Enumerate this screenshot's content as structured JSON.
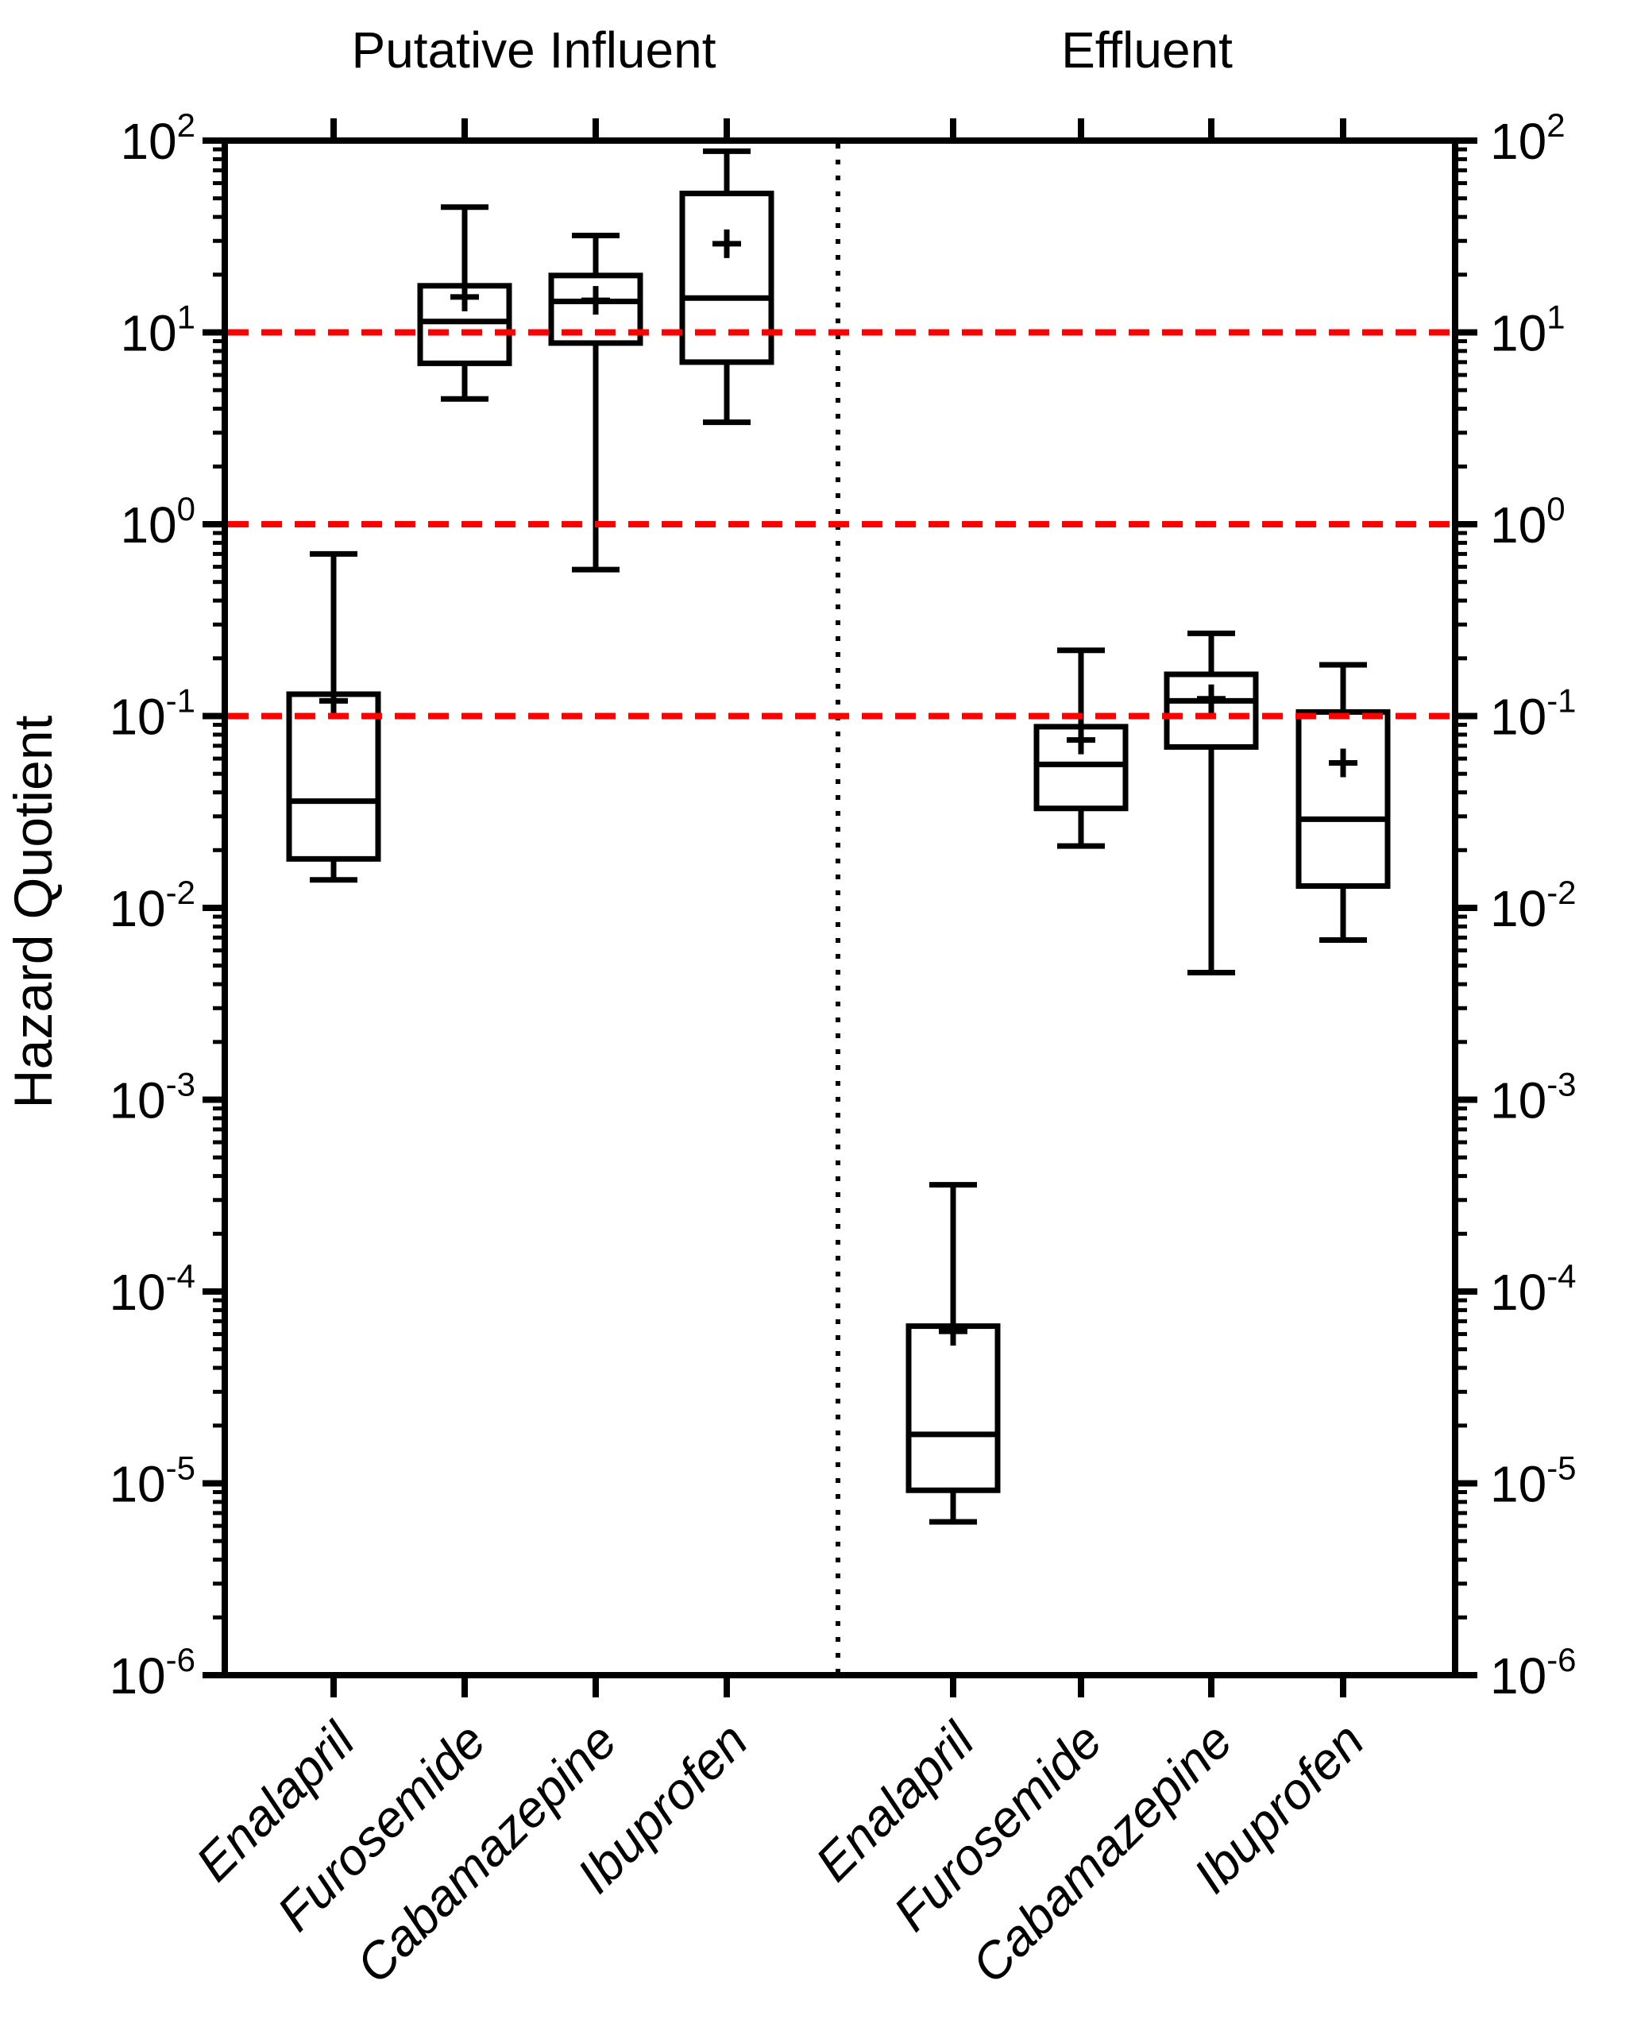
{
  "figure": {
    "ylabel": "Hazard Quotient",
    "group_titles": {
      "influent": "Putative Influent",
      "effluent": "Effluent"
    }
  },
  "chart_data": {
    "type": "boxplot",
    "y_scale": "log10",
    "ylabel": "Hazard Quotient",
    "ylim": [
      1e-06,
      100
    ],
    "ytick_exponents": [
      2,
      1,
      0,
      -1,
      -2,
      -3,
      -4,
      -5,
      -6
    ],
    "grid": "off",
    "reference_lines": {
      "values": [
        10,
        1,
        0.1
      ],
      "color": "#FF0000",
      "style": "dashed"
    },
    "group_separator": {
      "style": "dotted",
      "orientation": "vertical",
      "color": "#000000"
    },
    "groups": [
      {
        "label": "Putative Influent",
        "boxes": [
          {
            "category": "Enalapril",
            "whisker_low": 0.014,
            "q1": 0.018,
            "median": 0.036,
            "q3": 0.13,
            "mean": 0.12,
            "whisker_high": 0.7
          },
          {
            "category": "Furosemide",
            "whisker_low": 4.5,
            "q1": 6.9,
            "median": 11.4,
            "q3": 17.5,
            "mean": 15.3,
            "whisker_high": 45
          },
          {
            "category": "Cabamazepine",
            "whisker_low": 0.58,
            "q1": 8.8,
            "median": 14.5,
            "q3": 19.8,
            "mean": 14.7,
            "whisker_high": 32
          },
          {
            "category": "Ibuprofen",
            "whisker_low": 3.4,
            "q1": 7.0,
            "median": 15.1,
            "q3": 53,
            "mean": 29,
            "whisker_high": 88
          }
        ]
      },
      {
        "label": "Effluent",
        "boxes": [
          {
            "category": "Enalapril",
            "whisker_low": 6.3e-06,
            "q1": 9.2e-06,
            "median": 1.8e-05,
            "q3": 6.6e-05,
            "mean": 6.2e-05,
            "whisker_high": 0.00036
          },
          {
            "category": "Furosemide",
            "whisker_low": 0.021,
            "q1": 0.033,
            "median": 0.056,
            "q3": 0.088,
            "mean": 0.075,
            "whisker_high": 0.22
          },
          {
            "category": "Cabamazepine",
            "whisker_low": 0.0046,
            "q1": 0.069,
            "median": 0.12,
            "q3": 0.165,
            "mean": 0.123,
            "whisker_high": 0.27
          },
          {
            "category": "Ibuprofen",
            "whisker_low": 0.0068,
            "q1": 0.013,
            "median": 0.029,
            "q3": 0.105,
            "mean": 0.057,
            "whisker_high": 0.185
          }
        ]
      }
    ]
  }
}
